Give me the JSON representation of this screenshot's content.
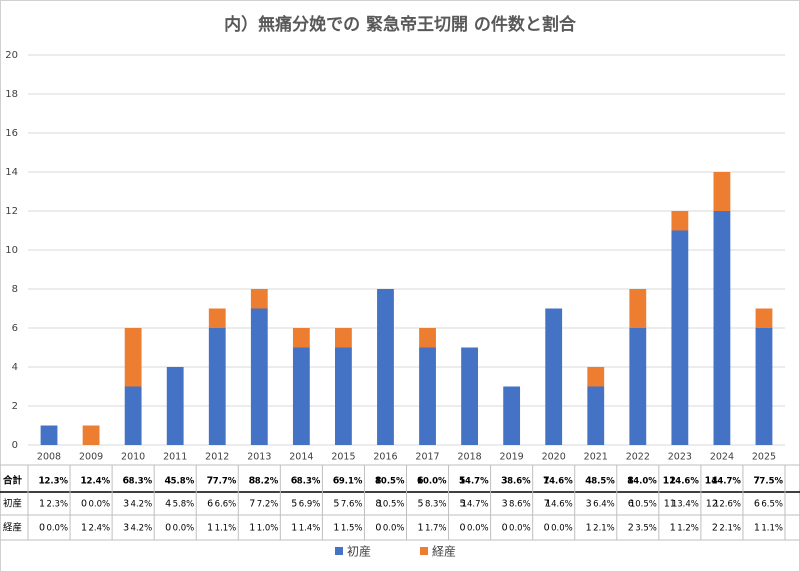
{
  "chart_data": {
    "type": "bar",
    "stacked": true,
    "title": "内）無痛分娩での 緊急帝王切開 の件数と割合",
    "categories": [
      "2008",
      "2009",
      "2010",
      "2011",
      "2012",
      "2013",
      "2014",
      "2015",
      "2016",
      "2017",
      "2018",
      "2019",
      "2020",
      "2021",
      "2022",
      "2023",
      "2024",
      "2025"
    ],
    "series": [
      {
        "name": "初産",
        "color": "#4472c4",
        "values": [
          1,
          0,
          3,
          4,
          6,
          7,
          5,
          5,
          8,
          5,
          5,
          3,
          7,
          3,
          6,
          11,
          12,
          6
        ],
        "percents": [
          "2.3%",
          "0.0%",
          "4.2%",
          "5.8%",
          "6.6%",
          "7.2%",
          "6.9%",
          "7.6%",
          "10.5%",
          "8.3%",
          "14.7%",
          "8.6%",
          "14.6%",
          "6.4%",
          "10.5%",
          "13.4%",
          "12.6%",
          "6.5%"
        ]
      },
      {
        "name": "経産",
        "color": "#ed7d31",
        "values": [
          0,
          1,
          3,
          0,
          1,
          1,
          1,
          1,
          0,
          1,
          0,
          0,
          0,
          1,
          2,
          1,
          2,
          1
        ],
        "percents": [
          "0.0%",
          "2.4%",
          "4.2%",
          "0.0%",
          "1.1%",
          "1.0%",
          "1.4%",
          "1.5%",
          "0.0%",
          "1.7%",
          "0.0%",
          "0.0%",
          "0.0%",
          "2.1%",
          "3.5%",
          "1.2%",
          "2.1%",
          "1.1%"
        ]
      }
    ],
    "table": {
      "total_label": "合計",
      "totals": [
        1,
        1,
        6,
        4,
        7,
        8,
        6,
        6,
        8,
        6,
        5,
        3,
        7,
        4,
        8,
        12,
        14,
        7
      ],
      "total_percents": [
        "2.3%",
        "2.4%",
        "8.3%",
        "5.8%",
        "7.7%",
        "8.2%",
        "8.3%",
        "9.1%",
        "10.5%",
        "10.0%",
        "14.7%",
        "8.6%",
        "14.6%",
        "8.5%",
        "14.0%",
        "14.6%",
        "14.7%",
        "7.5%"
      ]
    },
    "ylim": [
      0,
      20
    ],
    "yticks": [
      0,
      2,
      4,
      6,
      8,
      10,
      12,
      14,
      16,
      18,
      20
    ],
    "grid": true,
    "legend": "bottom"
  }
}
